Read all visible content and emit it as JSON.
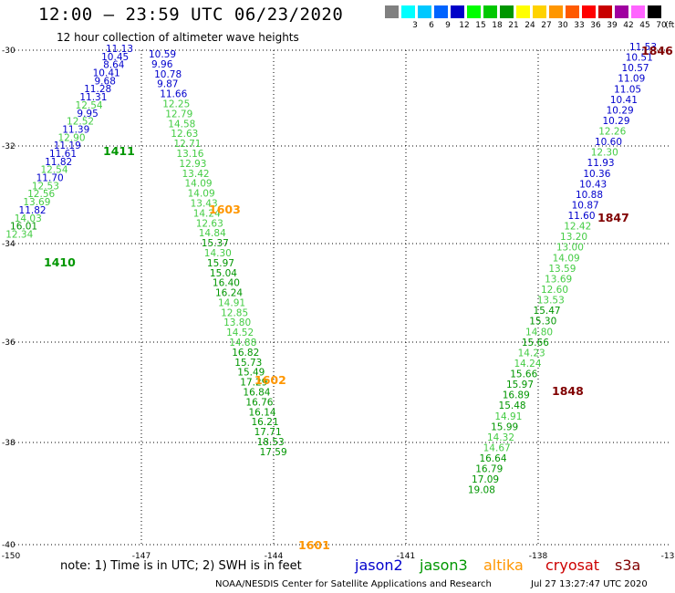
{
  "header": {
    "title": "12:00 – 23:59 UTC 06/23/2020",
    "subtitle": "12 hour collection of altimeter wave heights"
  },
  "scale": {
    "unit": "(ft)",
    "bins": [
      {
        "label": "",
        "color": "#808080"
      },
      {
        "label": "3",
        "color": "#00ffff"
      },
      {
        "label": "6",
        "color": "#00c8ff"
      },
      {
        "label": "9",
        "color": "#0064ff"
      },
      {
        "label": "12",
        "color": "#0000c8"
      },
      {
        "label": "15",
        "color": "#00ff00"
      },
      {
        "label": "18",
        "color": "#00c800"
      },
      {
        "label": "21",
        "color": "#009600"
      },
      {
        "label": "24",
        "color": "#ffff00"
      },
      {
        "label": "27",
        "color": "#ffd200"
      },
      {
        "label": "30",
        "color": "#ff9600"
      },
      {
        "label": "33",
        "color": "#ff5a00"
      },
      {
        "label": "36",
        "color": "#ff0000"
      },
      {
        "label": "39",
        "color": "#c80000"
      },
      {
        "label": "42",
        "color": "#a000a0"
      },
      {
        "label": "45",
        "color": "#ff64ff"
      },
      {
        "label": "70",
        "color": "#000000"
      }
    ]
  },
  "axes": {
    "lon_labels": [
      "-150",
      "-147",
      "-144",
      "-141",
      "-138",
      "-13"
    ],
    "lat_labels": [
      "-30",
      "-32",
      "-34",
      "-36",
      "-38",
      "-40"
    ]
  },
  "tracks": [
    {
      "id": "t1",
      "color": "#0000cc",
      "values": [
        "11.13",
        "10.45",
        "8.64",
        "10.41",
        "9.68",
        "11.28",
        "11.31"
      ]
    },
    {
      "id": "t1b",
      "color": "#44cc44",
      "values": [
        "12.54"
      ]
    },
    {
      "id": "t1c",
      "color": "#0000cc",
      "values": [
        "9.95"
      ]
    },
    {
      "id": "t1d",
      "color": "#44cc44",
      "values": [
        "12.52"
      ]
    },
    {
      "id": "t1e",
      "color": "#0000cc",
      "values": [
        "11.39"
      ]
    },
    {
      "id": "t1f",
      "color": "#44cc44",
      "values": [
        "12.90"
      ]
    },
    {
      "id": "t1g",
      "color": "#0000cc",
      "values": [
        "11.19",
        "11.61",
        "11.82"
      ]
    },
    {
      "id": "t1h",
      "color": "#44cc44",
      "values": [
        "12.54"
      ]
    },
    {
      "id": "t1i",
      "color": "#0000cc",
      "values": [
        "11.70"
      ]
    },
    {
      "id": "t1j",
      "color": "#44cc44",
      "values": [
        "12.53",
        "12.56",
        "13.69"
      ]
    },
    {
      "id": "t1k",
      "color": "#0000cc",
      "values": [
        "11.82"
      ]
    },
    {
      "id": "t1l",
      "color": "#44cc44",
      "values": [
        "14.03"
      ]
    },
    {
      "id": "t1m",
      "color": "#009600",
      "values": [
        "16.01"
      ]
    },
    {
      "id": "t1n",
      "color": "#44cc44",
      "values": [
        "12.34"
      ]
    },
    {
      "id": "t2",
      "color": "#0000cc",
      "values": [
        "10.59",
        "9.96",
        "10.78",
        "9.87",
        "11.66"
      ]
    },
    {
      "id": "t2b",
      "color": "#44cc44",
      "values": [
        "12.25",
        "12.79",
        "14.58",
        "12.63",
        "12.71",
        "13.16",
        "12.93",
        "13.42",
        "14.09",
        "14.09",
        "13.43",
        "14.24",
        "12.63",
        "14.84"
      ]
    },
    {
      "id": "t2c",
      "color": "#009600",
      "values": [
        "15.37"
      ]
    },
    {
      "id": "t2d",
      "color": "#44cc44",
      "values": [
        "14.30"
      ]
    },
    {
      "id": "t2e",
      "color": "#009600",
      "values": [
        "15.97",
        "15.04",
        "16.40",
        "16.24"
      ]
    },
    {
      "id": "t2f",
      "color": "#44cc44",
      "values": [
        "14.91",
        "12.85",
        "13.80",
        "14.52",
        "14.88"
      ]
    },
    {
      "id": "t2g",
      "color": "#009600",
      "values": [
        "16.82",
        "15.73",
        "15.49",
        "17.29",
        "16.84",
        "16.76",
        "16.14",
        "16.21",
        "17.71",
        "18.53",
        "17.59"
      ]
    },
    {
      "id": "t3",
      "color": "#0000cc",
      "values": [
        "11.53",
        "10.51",
        "10.57",
        "11.09",
        "11.05",
        "10.41",
        "10.29",
        "10.29"
      ]
    },
    {
      "id": "t3b",
      "color": "#44cc44",
      "values": [
        "12.26"
      ]
    },
    {
      "id": "t3c",
      "color": "#0000cc",
      "values": [
        "10.60"
      ]
    },
    {
      "id": "t3d",
      "color": "#44cc44",
      "values": [
        "12.30"
      ]
    },
    {
      "id": "t3e",
      "color": "#0000cc",
      "values": [
        "11.93",
        "10.36",
        "10.43",
        "10.88",
        "10.87",
        "11.60"
      ]
    },
    {
      "id": "t3f",
      "color": "#44cc44",
      "values": [
        "12.42",
        "13.20",
        "13.00",
        "14.09",
        "13.59",
        "13.69",
        "12.60",
        "13.53"
      ]
    },
    {
      "id": "t3g",
      "color": "#009600",
      "values": [
        "15.47",
        "15.30"
      ]
    },
    {
      "id": "t3h",
      "color": "#44cc44",
      "values": [
        "14.80"
      ]
    },
    {
      "id": "t3i",
      "color": "#009600",
      "values": [
        "15.66"
      ]
    },
    {
      "id": "t3j",
      "color": "#44cc44",
      "values": [
        "14.23",
        "14.24"
      ]
    },
    {
      "id": "t3k",
      "color": "#009600",
      "values": [
        "15.66",
        "15.97",
        "16.89",
        "15.48"
      ]
    },
    {
      "id": "t3l",
      "color": "#44cc44",
      "values": [
        "14.91"
      ]
    },
    {
      "id": "t3m",
      "color": "#009600",
      "values": [
        "15.99"
      ]
    },
    {
      "id": "t3n",
      "color": "#44cc44",
      "values": [
        "14.32",
        "14.67"
      ]
    },
    {
      "id": "t3o",
      "color": "#009600",
      "values": [
        "16.64",
        "16.79",
        "17.09",
        "19.08"
      ]
    }
  ],
  "time_labels": [
    {
      "text": "1846",
      "color": "#800000"
    },
    {
      "text": "1411",
      "color": "#009600"
    },
    {
      "text": "1603",
      "color": "#ff9600"
    },
    {
      "text": "1847",
      "color": "#800000"
    },
    {
      "text": "1410",
      "color": "#009600"
    },
    {
      "text": "1602",
      "color": "#ff9600"
    },
    {
      "text": "1848",
      "color": "#800000"
    },
    {
      "text": "1601",
      "color": "#ff9600"
    }
  ],
  "footer": {
    "note": "note:  1) Time is in UTC;  2) SWH is in feet",
    "satellites": [
      {
        "name": "jason2",
        "color": "#0000cc"
      },
      {
        "name": "jason3",
        "color": "#009600"
      },
      {
        "name": "altika",
        "color": "#ff9600"
      },
      {
        "name": "cryosat",
        "color": "#cc0000"
      },
      {
        "name": "s3a",
        "color": "#800000"
      }
    ],
    "credit": "NOAA/NESDIS Center for Satellite Applications and Research",
    "timestamp": "Jul 27 13:27:47 UTC 2020"
  }
}
